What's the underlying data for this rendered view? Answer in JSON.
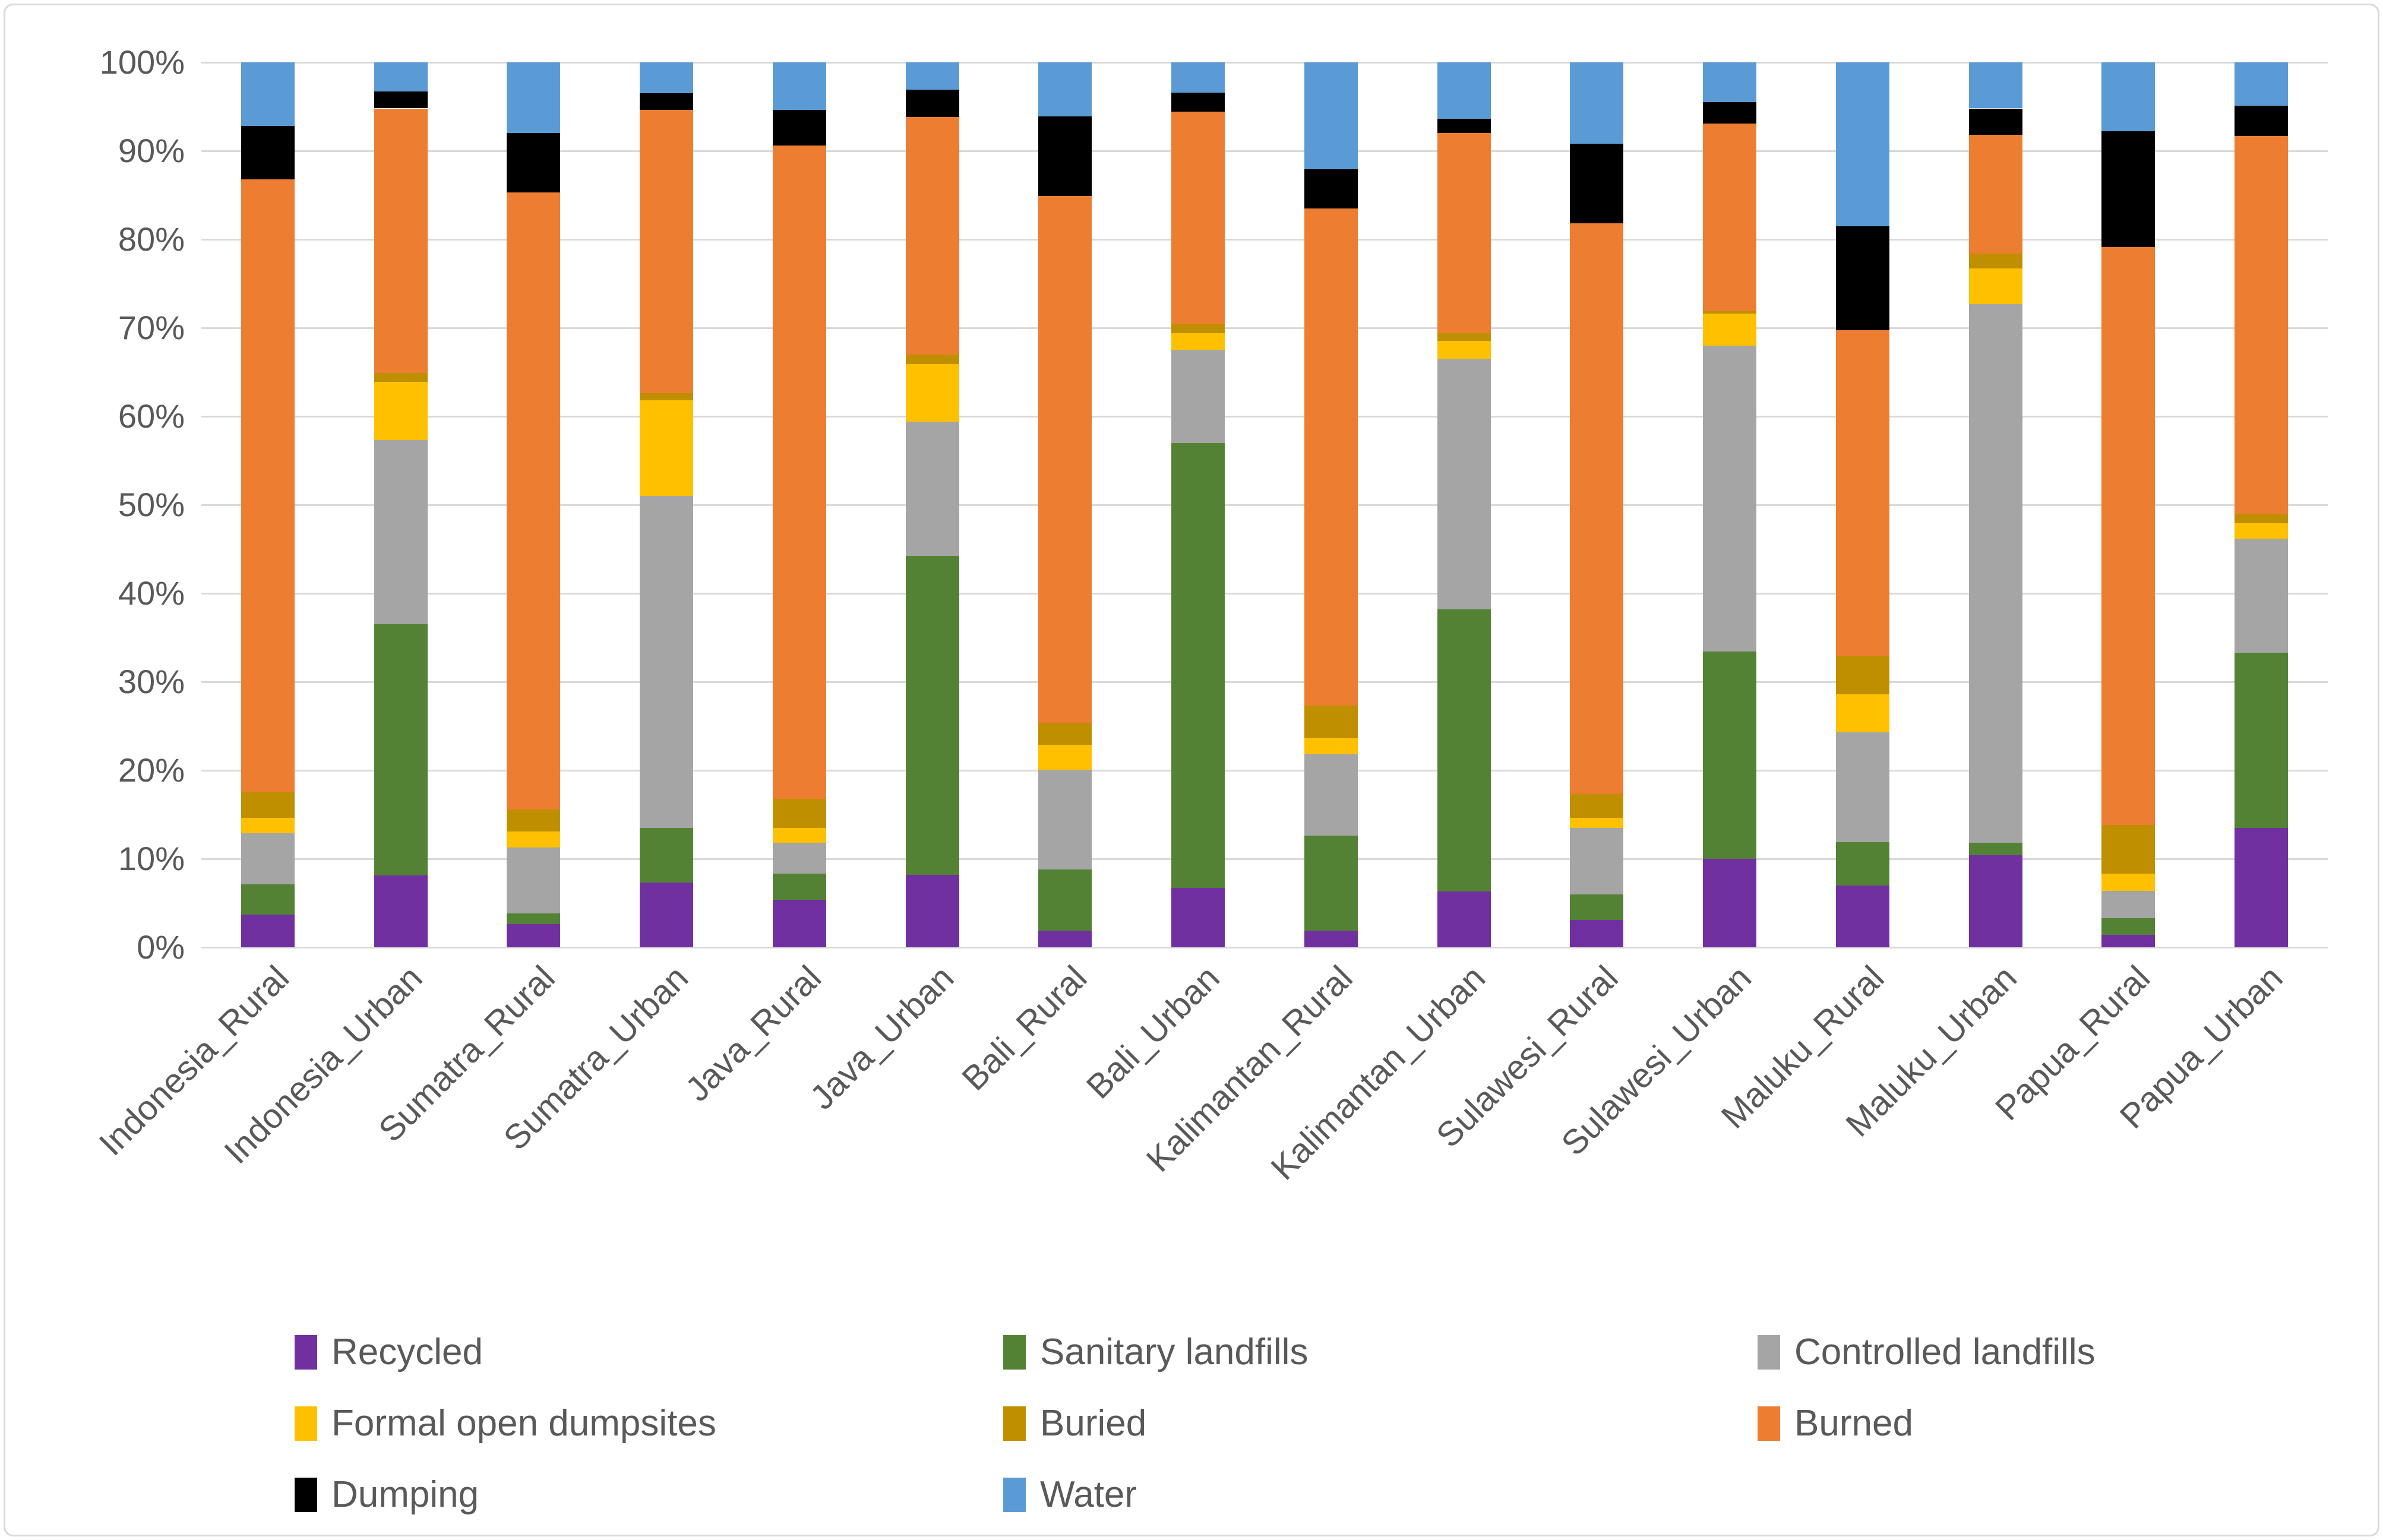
{
  "chart_data": {
    "type": "bar",
    "variant": "stacked-100-percent-column",
    "title": "",
    "xlabel": "",
    "ylabel": "",
    "grid": "horizontal",
    "legend_position": "bottom",
    "categories": [
      "Indonesia_Rural",
      "Indonesia_Urban",
      "Sumatra_Rural",
      "Sumatra_Urban",
      "Java_Rural",
      "Java_Urban",
      "Bali_Rural",
      "Bali_Urban",
      "Kalimantan_Rural",
      "Kalimantan_Urban",
      "Sulawesi_Rural",
      "Sulawesi_Urban",
      "Maluku_Rural",
      "Maluku_Urban",
      "Papua_Rural",
      "Papua_Urban"
    ],
    "y_axis": {
      "min": 0,
      "max": 100,
      "step": 10,
      "tick_labels": [
        "0%",
        "10%",
        "20%",
        "30%",
        "40%",
        "50%",
        "60%",
        "70%",
        "80%",
        "90%",
        "100%"
      ]
    },
    "series": [
      {
        "name": "Recycled",
        "color": "#7030A0",
        "values": [
          3.7,
          8.1,
          2.6,
          7.3,
          5.4,
          8.2,
          1.9,
          6.7,
          1.9,
          6.3,
          3.1,
          10.0,
          7.0,
          10.4,
          1.4,
          13.5
        ]
      },
      {
        "name": "Sanitary landfills",
        "color": "#548235",
        "values": [
          3.4,
          28.4,
          1.2,
          6.2,
          2.9,
          36.0,
          6.9,
          50.3,
          10.7,
          31.9,
          2.9,
          23.4,
          4.9,
          1.4,
          1.9,
          19.8
        ]
      },
      {
        "name": "Controlled landfills",
        "color": "#A5A5A5",
        "values": [
          5.8,
          20.8,
          7.5,
          37.5,
          3.5,
          15.2,
          11.3,
          10.5,
          9.2,
          28.3,
          7.5,
          34.6,
          12.4,
          60.9,
          3.1,
          12.9
        ]
      },
      {
        "name": "Formal open dumpsites",
        "color": "#FFC000",
        "values": [
          1.7,
          6.6,
          1.8,
          10.8,
          1.7,
          6.5,
          2.8,
          1.9,
          1.8,
          2.0,
          1.1,
          3.6,
          4.3,
          4.0,
          1.9,
          1.7
        ]
      },
      {
        "name": "Buried",
        "color": "#BF8F00",
        "values": [
          3.0,
          1.0,
          2.5,
          0.8,
          3.3,
          1.1,
          2.5,
          1.0,
          3.7,
          0.9,
          2.7,
          0.3,
          4.3,
          1.7,
          5.5,
          1.0
        ]
      },
      {
        "name": "Burned",
        "color": "#ED7D31",
        "values": [
          69.2,
          29.9,
          69.7,
          32.0,
          73.8,
          26.8,
          59.5,
          24.0,
          56.2,
          22.6,
          64.5,
          21.2,
          36.8,
          13.4,
          65.3,
          42.8
        ]
      },
      {
        "name": "Dumping",
        "color": "#000000",
        "values": [
          6.0,
          1.9,
          6.7,
          1.9,
          4.0,
          3.1,
          9.0,
          2.2,
          4.4,
          1.6,
          9.0,
          2.4,
          11.8,
          3.0,
          13.1,
          3.4
        ]
      },
      {
        "name": "Water",
        "color": "#5B9BD5",
        "values": [
          7.2,
          3.3,
          8.0,
          3.5,
          5.4,
          3.1,
          6.1,
          3.4,
          12.1,
          6.4,
          9.2,
          4.5,
          18.5,
          5.2,
          7.8,
          4.9
        ]
      }
    ],
    "legend_rows": [
      [
        "Recycled",
        "Sanitary landfills",
        "Controlled landfills"
      ],
      [
        "Formal open dumpsites",
        "Buried",
        "Burned"
      ],
      [
        "Dumping",
        "Water"
      ]
    ]
  },
  "colors": {
    "axis_text": "#595959",
    "gridline": "#D9D9D9",
    "frame_border": "#D9D9D9",
    "background": "#FFFFFF"
  }
}
